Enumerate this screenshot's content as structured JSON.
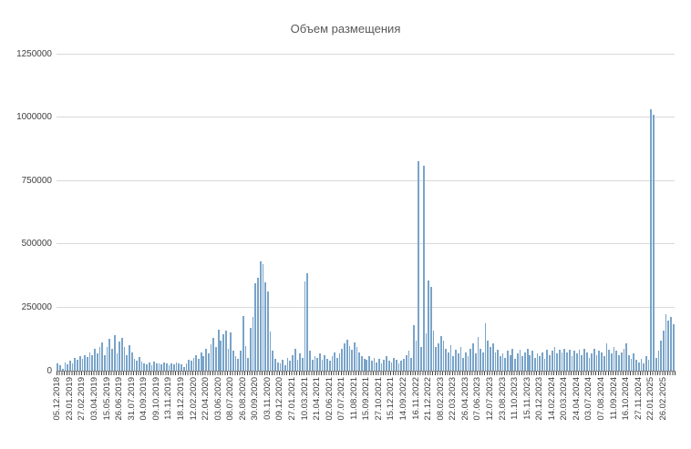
{
  "chart_data": {
    "type": "bar",
    "title": "Объем размещения",
    "xlabel": "",
    "ylabel": "",
    "grid": "horizontal",
    "legend": null,
    "ylim": [
      0,
      1250000
    ],
    "yticks": [
      0,
      250000,
      500000,
      750000,
      1000000,
      1250000
    ],
    "ytick_labels": [
      "0",
      "250000",
      "500000",
      "750000",
      "1000000",
      "1250000"
    ],
    "label_interval": 5,
    "x_tick_labels": [
      "05.12.2018",
      "23.01.2019",
      "27.02.2019",
      "03.04.2019",
      "15.05.2019",
      "26.06.2019",
      "31.07.2019",
      "04.09.2019",
      "09.10.2019",
      "13.11.2019",
      "18.12.2019",
      "12.02.2020",
      "22.04.2020",
      "03.06.2020",
      "08.07.2020",
      "26.08.2020",
      "30.09.2020",
      "03.11.2020",
      "09.12.2020",
      "27.01.2021",
      "10.03.2021",
      "21.04.2021",
      "02.06.2021",
      "07.07.2021",
      "11.08.2021",
      "15.09.2021",
      "27.10.2021",
      "15.12.2021",
      "14.09.2022",
      "16.11.2022",
      "21.12.2022",
      "08.02.2023",
      "22.03.2023",
      "26.04.2023",
      "07.06.2023",
      "12.07.2023",
      "23.08.2023",
      "11.10.2023",
      "15.11.2023",
      "20.12.2023",
      "14.02.2024",
      "20.03.2024",
      "24.04.2024",
      "03.07.2024",
      "07.08.2024",
      "11.09.2024",
      "16.10.2024",
      "27.11.2024",
      "22.01.2025",
      "26.02.2025"
    ],
    "values": [
      30000,
      22000,
      8000,
      32000,
      26000,
      38000,
      30000,
      52000,
      42000,
      58000,
      48000,
      62000,
      55000,
      72000,
      60000,
      85000,
      68000,
      95000,
      110000,
      62000,
      92000,
      125000,
      85000,
      140000,
      70000,
      115000,
      128000,
      95000,
      60000,
      100000,
      72000,
      48000,
      40000,
      55000,
      35000,
      28000,
      25000,
      32000,
      20000,
      35000,
      28000,
      30000,
      24000,
      34000,
      28000,
      20000,
      28000,
      24000,
      32000,
      28000,
      24000,
      14000,
      28000,
      42000,
      38000,
      52000,
      62000,
      45000,
      72000,
      58000,
      88000,
      68000,
      105000,
      128000,
      92000,
      162000,
      118000,
      142000,
      158000,
      88000,
      150000,
      80000,
      58000,
      45000,
      78000,
      215000,
      98000,
      52000,
      168000,
      212000,
      345000,
      365000,
      432000,
      422000,
      350000,
      312000,
      155000,
      78000,
      45000,
      32000,
      28000,
      44000,
      22000,
      52000,
      38000,
      62000,
      88000,
      42000,
      68000,
      52000,
      352000,
      385000,
      78000,
      42000,
      58000,
      52000,
      68000,
      42000,
      62000,
      48000,
      38000,
      58000,
      72000,
      52000,
      68000,
      88000,
      108000,
      122000,
      98000,
      82000,
      112000,
      92000,
      72000,
      58000,
      48000,
      42000,
      58000,
      38000,
      52000,
      32000,
      48000,
      28000,
      42000,
      58000,
      38000,
      32000,
      52000,
      42000,
      28000,
      38000,
      48000,
      62000,
      78000,
      52000,
      178000,
      120000,
      825000,
      95000,
      808000,
      148000,
      355000,
      330000,
      158000,
      92000,
      108000,
      138000,
      118000,
      88000,
      72000,
      102000,
      58000,
      82000,
      68000,
      92000,
      52000,
      72000,
      58000,
      88000,
      108000,
      68000,
      132000,
      88000,
      72000,
      188000,
      118000,
      92000,
      108000,
      72000,
      82000,
      58000,
      68000,
      52000,
      78000,
      62000,
      88000,
      48000,
      68000,
      82000,
      58000,
      72000,
      88000,
      62000,
      78000,
      52000,
      68000,
      58000,
      72000,
      48000,
      82000,
      62000,
      78000,
      92000,
      68000,
      82000,
      72000,
      88000,
      72000,
      82000,
      58000,
      78000,
      68000,
      82000,
      62000,
      88000,
      72000,
      52000,
      68000,
      88000,
      62000,
      78000,
      72000,
      58000,
      108000,
      82000,
      68000,
      92000,
      78000,
      62000,
      72000,
      88000,
      108000,
      62000,
      48000,
      68000,
      42000,
      32000,
      48000,
      28000,
      58000,
      42000,
      1030000,
      1008000,
      52000,
      78000,
      118000,
      158000,
      222000,
      198000,
      212000,
      185000
    ],
    "colors": {
      "bar": "#79A4C9",
      "gridline": "#D9D9D9",
      "axis_line": "#808080",
      "tick": "#404040",
      "title_text": "#595959",
      "label_text": "#404040"
    }
  }
}
